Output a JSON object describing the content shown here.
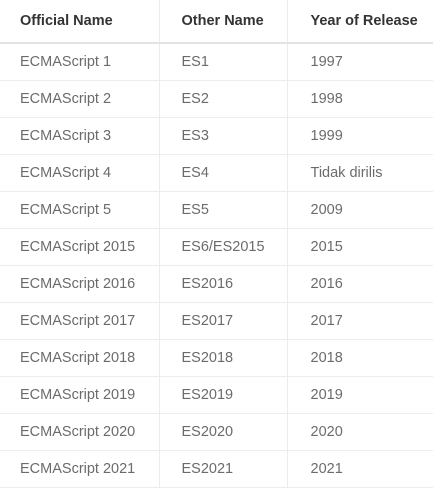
{
  "table": {
    "headers": [
      "Official Name",
      "Other Name",
      "Year of Release"
    ],
    "rows": [
      [
        "ECMAScript 1",
        "ES1",
        "1997"
      ],
      [
        "ECMAScript 2",
        "ES2",
        "1998"
      ],
      [
        "ECMAScript 3",
        "ES3",
        "1999"
      ],
      [
        "ECMAScript 4",
        "ES4",
        "Tidak dirilis"
      ],
      [
        "ECMAScript 5",
        "ES5",
        "2009"
      ],
      [
        "ECMAScript 2015",
        "ES6/ES2015",
        "2015"
      ],
      [
        "ECMAScript 2016",
        "ES2016",
        "2016"
      ],
      [
        "ECMAScript 2017",
        "ES2017",
        "2017"
      ],
      [
        "ECMAScript 2018",
        "ES2018",
        "2018"
      ],
      [
        "ECMAScript 2019",
        "ES2019",
        "2019"
      ],
      [
        "ECMAScript 2020",
        "ES2020",
        "2020"
      ],
      [
        "ECMAScript 2021",
        "ES2021",
        "2021"
      ]
    ]
  },
  "colors": {
    "header_text": "#333333",
    "cell_text": "#6b6b6b",
    "border": "#ececec"
  }
}
